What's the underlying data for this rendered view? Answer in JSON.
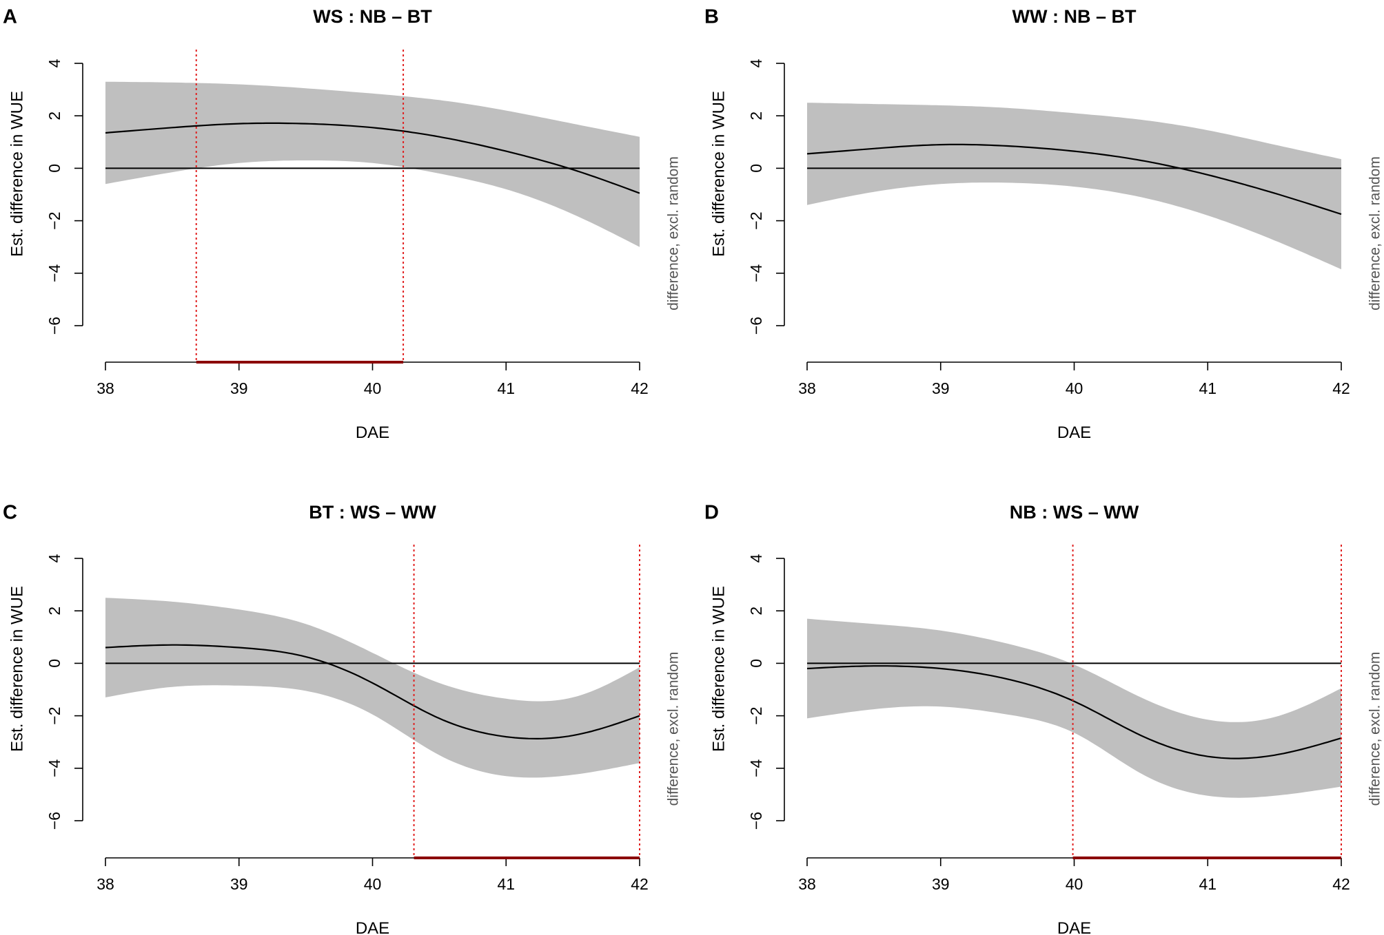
{
  "figure": {
    "colors": {
      "band": "#bfbfbf",
      "line": "#000000",
      "marker": "#e02020",
      "segment": "#8b0000",
      "side_label": "#555555"
    }
  },
  "chart_data": [
    {
      "type": "line",
      "panel": "A",
      "title": "WS : NB – BT",
      "xlabel": "DAE",
      "ylabel": "Est. difference in WUE",
      "side_label": "difference, excl. random",
      "xlim": [
        38,
        42
      ],
      "ylim": [
        -6,
        4
      ],
      "xticks": [
        "38",
        "39",
        "40",
        "41",
        "42"
      ],
      "yticks": [
        "4",
        "2",
        "0",
        "−2",
        "−4",
        "−6"
      ],
      "x": [
        38,
        38.5,
        39,
        39.5,
        40,
        40.5,
        41,
        41.5,
        42
      ],
      "series": [
        {
          "name": "estimate",
          "values": [
            1.35,
            1.55,
            1.7,
            1.7,
            1.55,
            1.2,
            0.65,
            -0.05,
            -0.95
          ]
        },
        {
          "name": "upper",
          "values": [
            3.3,
            3.27,
            3.2,
            3.05,
            2.85,
            2.6,
            2.2,
            1.7,
            1.2
          ]
        },
        {
          "name": "lower",
          "values": [
            -0.6,
            -0.15,
            0.2,
            0.3,
            0.2,
            -0.2,
            -0.8,
            -1.75,
            -3.0
          ]
        }
      ],
      "reference_line": 0,
      "vlines": [
        38.68,
        40.23
      ],
      "significant_range": [
        38.68,
        40.23
      ]
    },
    {
      "type": "line",
      "panel": "B",
      "title": "WW : NB – BT",
      "xlabel": "DAE",
      "ylabel": "Est. difference in WUE",
      "side_label": "difference, excl. random",
      "xlim": [
        38,
        42
      ],
      "ylim": [
        -6,
        4
      ],
      "xticks": [
        "38",
        "39",
        "40",
        "41",
        "42"
      ],
      "yticks": [
        "4",
        "2",
        "0",
        "−2",
        "−4",
        "−6"
      ],
      "x": [
        38,
        38.5,
        39,
        39.5,
        40,
        40.5,
        41,
        41.5,
        42
      ],
      "series": [
        {
          "name": "estimate",
          "values": [
            0.55,
            0.75,
            0.9,
            0.85,
            0.65,
            0.3,
            -0.25,
            -0.95,
            -1.75
          ]
        },
        {
          "name": "upper",
          "values": [
            2.5,
            2.45,
            2.4,
            2.3,
            2.1,
            1.85,
            1.45,
            0.9,
            0.35
          ]
        },
        {
          "name": "lower",
          "values": [
            -1.4,
            -0.9,
            -0.6,
            -0.55,
            -0.7,
            -1.1,
            -1.8,
            -2.75,
            -3.85
          ]
        }
      ],
      "reference_line": 0,
      "vlines": [],
      "significant_range": null
    },
    {
      "type": "line",
      "panel": "C",
      "title": "BT : WS – WW",
      "xlabel": "DAE",
      "ylabel": "Est. difference in WUE",
      "side_label": "difference, excl. random",
      "xlim": [
        38,
        42
      ],
      "ylim": [
        -6,
        4
      ],
      "xticks": [
        "38",
        "39",
        "40",
        "41",
        "42"
      ],
      "yticks": [
        "4",
        "2",
        "0",
        "−2",
        "−4",
        "−6"
      ],
      "x": [
        38,
        38.5,
        39,
        39.5,
        40,
        40.5,
        41,
        41.5,
        42
      ],
      "series": [
        {
          "name": "estimate",
          "values": [
            0.6,
            0.7,
            0.6,
            0.25,
            -0.75,
            -2.1,
            -2.8,
            -2.75,
            -2.0
          ]
        },
        {
          "name": "upper",
          "values": [
            2.5,
            2.35,
            2.05,
            1.5,
            0.4,
            -0.75,
            -1.35,
            -1.3,
            -0.15
          ]
        },
        {
          "name": "lower",
          "values": [
            -1.3,
            -0.9,
            -0.85,
            -1.05,
            -1.95,
            -3.5,
            -4.3,
            -4.25,
            -3.8
          ]
        }
      ],
      "reference_line": 0,
      "vlines": [
        40.31,
        42
      ],
      "significant_range": [
        40.31,
        42
      ]
    },
    {
      "type": "line",
      "panel": "D",
      "title": "NB : WS – WW",
      "xlabel": "DAE",
      "ylabel": "Est. difference in WUE",
      "side_label": "difference, excl. random",
      "xlim": [
        38,
        42
      ],
      "ylim": [
        -6,
        4
      ],
      "xticks": [
        "38",
        "39",
        "40",
        "41",
        "42"
      ],
      "yticks": [
        "4",
        "2",
        "0",
        "−2",
        "−4",
        "−6"
      ],
      "x": [
        38,
        38.5,
        39,
        39.5,
        40,
        40.5,
        41,
        41.5,
        42
      ],
      "series": [
        {
          "name": "estimate",
          "values": [
            -0.2,
            -0.1,
            -0.2,
            -0.6,
            -1.45,
            -2.75,
            -3.55,
            -3.5,
            -2.85
          ]
        },
        {
          "name": "upper",
          "values": [
            1.7,
            1.5,
            1.25,
            0.75,
            -0.05,
            -1.3,
            -2.15,
            -2.05,
            -0.95
          ]
        },
        {
          "name": "lower",
          "values": [
            -2.1,
            -1.75,
            -1.65,
            -1.95,
            -2.65,
            -4.2,
            -5.05,
            -5.05,
            -4.7
          ]
        }
      ],
      "reference_line": 0,
      "vlines": [
        39.99,
        42
      ],
      "significant_range": [
        39.99,
        42
      ]
    }
  ]
}
